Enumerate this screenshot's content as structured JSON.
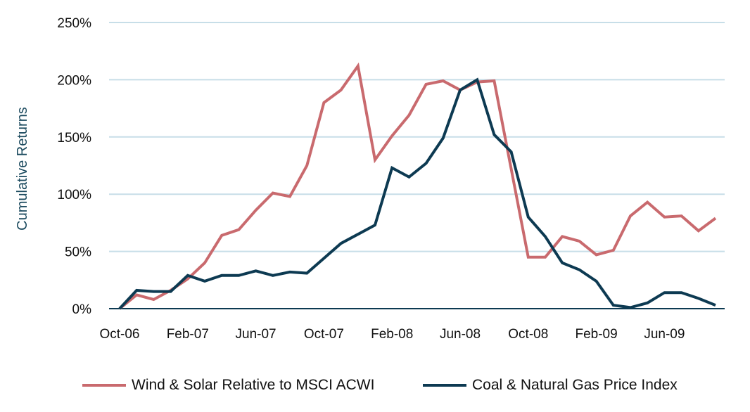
{
  "chart_data": {
    "type": "line",
    "title": "",
    "xlabel": "",
    "ylabel": "Cumulative Returns",
    "ylim": [
      0,
      250
    ],
    "yticks": [
      0,
      50,
      100,
      150,
      200,
      250
    ],
    "ytick_labels": [
      "0%",
      "50%",
      "100%",
      "150%",
      "200%",
      "250%"
    ],
    "x_start": "Oct-06",
    "xtick_labels": [
      "Oct-06",
      "Feb-07",
      "Jun-07",
      "Oct-07",
      "Feb-08",
      "Jun-08",
      "Oct-08",
      "Feb-09",
      "Jun-09"
    ],
    "xtick_step_months": 4,
    "grid": true,
    "legend_position": "bottom",
    "series": [
      {
        "name": "Wind & Solar Relative to MSCI ACWI",
        "color": "#C96A6E",
        "values": [
          0,
          12,
          8,
          16,
          26,
          40,
          64,
          69,
          86,
          101,
          98,
          125,
          180,
          191,
          212,
          130,
          151,
          169,
          196,
          199,
          191,
          198,
          199,
          122,
          45,
          45,
          63,
          59,
          47,
          51,
          81,
          93,
          80,
          81,
          68,
          79
        ]
      },
      {
        "name": "Coal & Natural Gas Price Index",
        "color": "#0D3A52",
        "values": [
          0,
          16,
          15,
          15,
          29,
          24,
          29,
          29,
          33,
          29,
          32,
          31,
          44,
          57,
          65,
          73,
          123,
          115,
          127,
          149,
          191,
          200,
          152,
          137,
          80,
          63,
          40,
          34,
          24,
          3,
          1,
          5,
          14,
          14,
          9,
          3
        ]
      }
    ]
  }
}
